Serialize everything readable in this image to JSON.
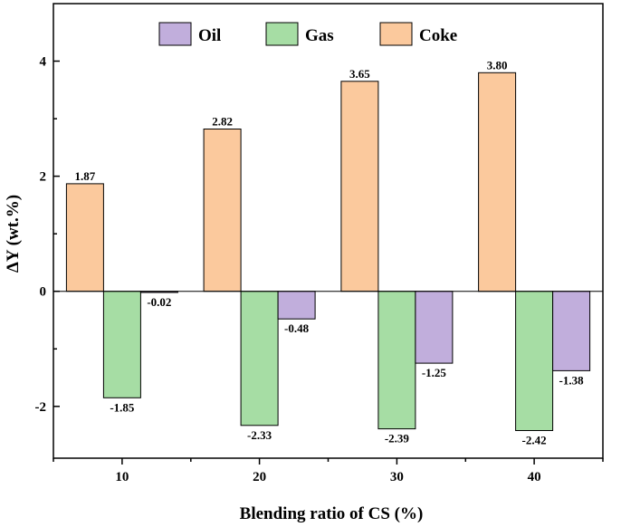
{
  "chart_data": {
    "type": "bar",
    "title": "",
    "xlabel": "Blending ratio of CS (%)",
    "ylabel": "ΔY (wt.%)",
    "categories": [
      "10",
      "20",
      "30",
      "40"
    ],
    "ylim": [
      -2.9,
      5.0
    ],
    "yticks": [
      -2,
      0,
      2,
      4
    ],
    "ytick_labels": [
      "-2",
      "0",
      "2",
      "4"
    ],
    "legend_position": "top-center",
    "series": [
      {
        "name": "Coke",
        "color": "#FBC99D",
        "values": [
          1.87,
          2.82,
          3.65,
          3.8
        ],
        "labels": [
          "1.87",
          "2.82",
          "3.65",
          "3.80"
        ]
      },
      {
        "name": "Gas",
        "color": "#A6DDA4",
        "values": [
          -1.85,
          -2.33,
          -2.39,
          -2.42
        ],
        "labels": [
          "-1.85",
          "-2.33",
          "-2.39",
          "-2.42"
        ]
      },
      {
        "name": "Oil",
        "color": "#C1AEDC",
        "values": [
          -0.02,
          -0.48,
          -1.25,
          -1.38
        ],
        "labels": [
          "-0.02",
          "-0.48",
          "-1.25",
          "-1.38"
        ]
      }
    ],
    "legend_order": [
      "Oil",
      "Gas",
      "Coke"
    ]
  }
}
